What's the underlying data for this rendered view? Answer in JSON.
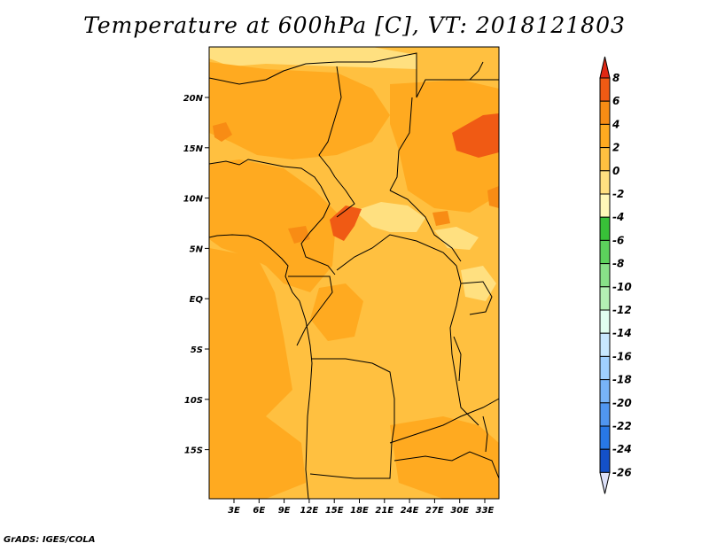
{
  "title": "Temperature at 600hPa [C], VT: 2018121803",
  "credit": "GrADS: IGES/COLA",
  "map": {
    "lat_ticks": [
      "20N",
      "15N",
      "10N",
      "5N",
      "EQ",
      "5S",
      "10S",
      "15S"
    ],
    "lon_ticks": [
      "3E",
      "6E",
      "9E",
      "12E",
      "15E",
      "18E",
      "21E",
      "24E",
      "27E",
      "30E",
      "33E"
    ],
    "base_color": "#ffc040"
  },
  "colorbar": {
    "labels": [
      "8",
      "6",
      "4",
      "2",
      "0",
      "-2",
      "-4",
      "-6",
      "-8",
      "-10",
      "-12",
      "-14",
      "-16",
      "-18",
      "-20",
      "-22",
      "-24",
      "-26"
    ],
    "colors": [
      "#e02814",
      "#f05a14",
      "#f88c14",
      "#ffaa20",
      "#ffc040",
      "#ffe080",
      "#fff8b8",
      "#38c038",
      "#5cd25c",
      "#88e088",
      "#b4f0b4",
      "#e0fff0",
      "#c8e8ff",
      "#a0d0ff",
      "#78b4f8",
      "#5096f0",
      "#2878e6",
      "#1450c8",
      "#0a32a0",
      "#0a1470",
      "#dce0f8"
    ]
  }
}
